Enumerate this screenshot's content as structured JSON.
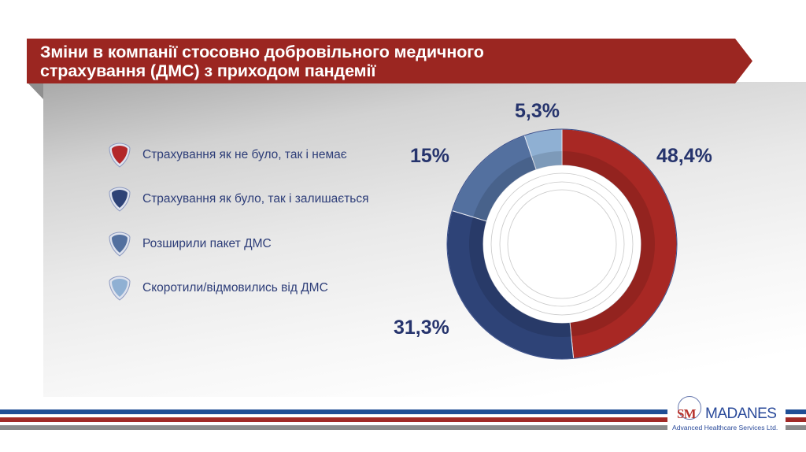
{
  "title": {
    "line1": "Зміни в компанії стосовно добровільного медичного",
    "line2": "страхування (ДМС) з  приходом пандемії"
  },
  "legend": [
    {
      "label": "Страхування як не було, так і немає",
      "color": "#b3272a"
    },
    {
      "label": "Страхування як було, так і залишається",
      "color": "#2e4377"
    },
    {
      "label": "Розширили пакет ДМС",
      "color": "#53709f"
    },
    {
      "label": "Скоротили/відмовились від ДМС",
      "color": "#8fb0d3"
    }
  ],
  "labels": {
    "s1": "48,4%",
    "s2": "31,3%",
    "s3": "15%",
    "s4": "5,3%"
  },
  "logo": {
    "mark": "SM",
    "name": "MADANES",
    "subtitle": "Advanced Healthcare Services Ltd."
  },
  "colors": {
    "banner": "#9b2621",
    "text_dark_blue": "#26346d",
    "stripe_blue": "#1f4e95",
    "stripe_red": "#a12a27",
    "stripe_gray": "#8b8b8b"
  },
  "chart_data": {
    "type": "pie",
    "variant": "donut",
    "title": "Зміни в компанії стосовно добровільного медичного страхування (ДМС) з  приходом пандемії",
    "categories": [
      "Страхування як не було, так і немає",
      "Страхування як було, так і залишається",
      "Розширили пакет ДМС",
      "Скоротили/відмовились від ДМС"
    ],
    "values": [
      48.4,
      31.3,
      15.0,
      5.3
    ],
    "value_labels": [
      "48,4%",
      "31,3%",
      "15%",
      "5,3%"
    ],
    "colors": [
      "#a82824",
      "#2e4377",
      "#53709f",
      "#8fb0d3"
    ],
    "start_angle": "12 o'clock, clockwise",
    "legend_position": "left"
  }
}
